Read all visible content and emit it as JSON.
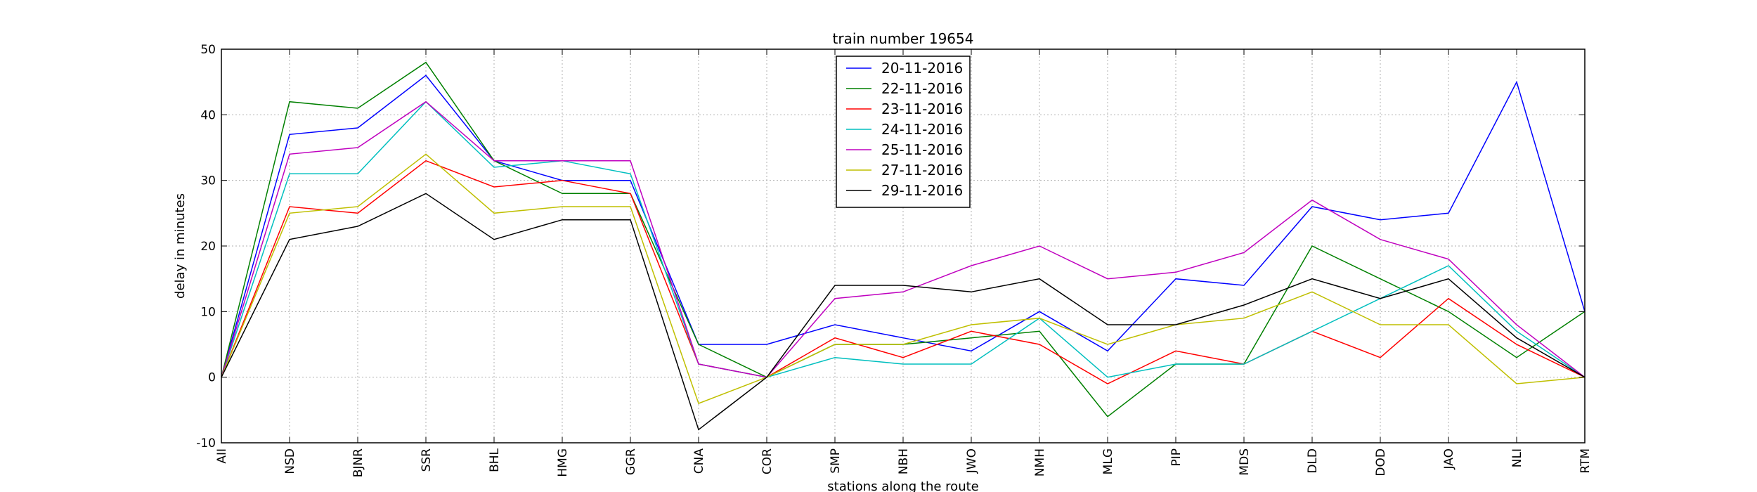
{
  "chart_data": {
    "type": "line",
    "title": "train number 19654",
    "xlabel": "stations along the route",
    "ylabel": "delay in minutes",
    "ylim": [
      -10,
      50
    ],
    "yticks": [
      -10,
      0,
      10,
      20,
      30,
      40,
      50
    ],
    "grid": true,
    "legend_position": "top-center",
    "categories": [
      "AII",
      "NSD",
      "BJNR",
      "SSR",
      "BHL",
      "HMG",
      "GGR",
      "CNA",
      "COR",
      "SMP",
      "NBH",
      "JWO",
      "NMH",
      "MLG",
      "PIP",
      "MDS",
      "DLD",
      "DOD",
      "JAO",
      "NLI",
      "RTM"
    ],
    "series": [
      {
        "name": "20-11-2016",
        "color": "#0000ff",
        "values": [
          0,
          37,
          38,
          46,
          33,
          30,
          30,
          5,
          5,
          8,
          6,
          4,
          10,
          4,
          15,
          14,
          26,
          24,
          25,
          45,
          10
        ]
      },
      {
        "name": "22-11-2016",
        "color": "#008000",
        "values": [
          0,
          42,
          41,
          48,
          33,
          28,
          28,
          5,
          0,
          5,
          5,
          6,
          7,
          -6,
          2,
          2,
          20,
          15,
          10,
          3,
          10
        ]
      },
      {
        "name": "23-11-2016",
        "color": "#ff0000",
        "values": [
          0,
          26,
          25,
          33,
          29,
          30,
          28,
          2,
          0,
          6,
          3,
          7,
          5,
          -1,
          4,
          2,
          7,
          3,
          12,
          5,
          0
        ]
      },
      {
        "name": "24-11-2016",
        "color": "#00bfbf",
        "values": [
          0,
          31,
          31,
          42,
          32,
          33,
          31,
          2,
          0,
          3,
          2,
          2,
          9,
          0,
          2,
          2,
          7,
          12,
          17,
          7,
          0
        ]
      },
      {
        "name": "25-11-2016",
        "color": "#bf00bf",
        "values": [
          0,
          34,
          35,
          42,
          33,
          33,
          33,
          2,
          0,
          12,
          13,
          17,
          20,
          15,
          16,
          19,
          27,
          21,
          18,
          8,
          0
        ]
      },
      {
        "name": "27-11-2016",
        "color": "#bfbf00",
        "values": [
          0,
          25,
          26,
          34,
          25,
          26,
          26,
          -4,
          0,
          5,
          5,
          8,
          9,
          5,
          8,
          9,
          13,
          8,
          8,
          -1,
          0
        ]
      },
      {
        "name": "29-11-2016",
        "color": "#000000",
        "values": [
          0,
          21,
          23,
          28,
          21,
          24,
          24,
          -8,
          0,
          14,
          14,
          13,
          15,
          8,
          8,
          11,
          15,
          12,
          15,
          6,
          0
        ]
      }
    ]
  }
}
